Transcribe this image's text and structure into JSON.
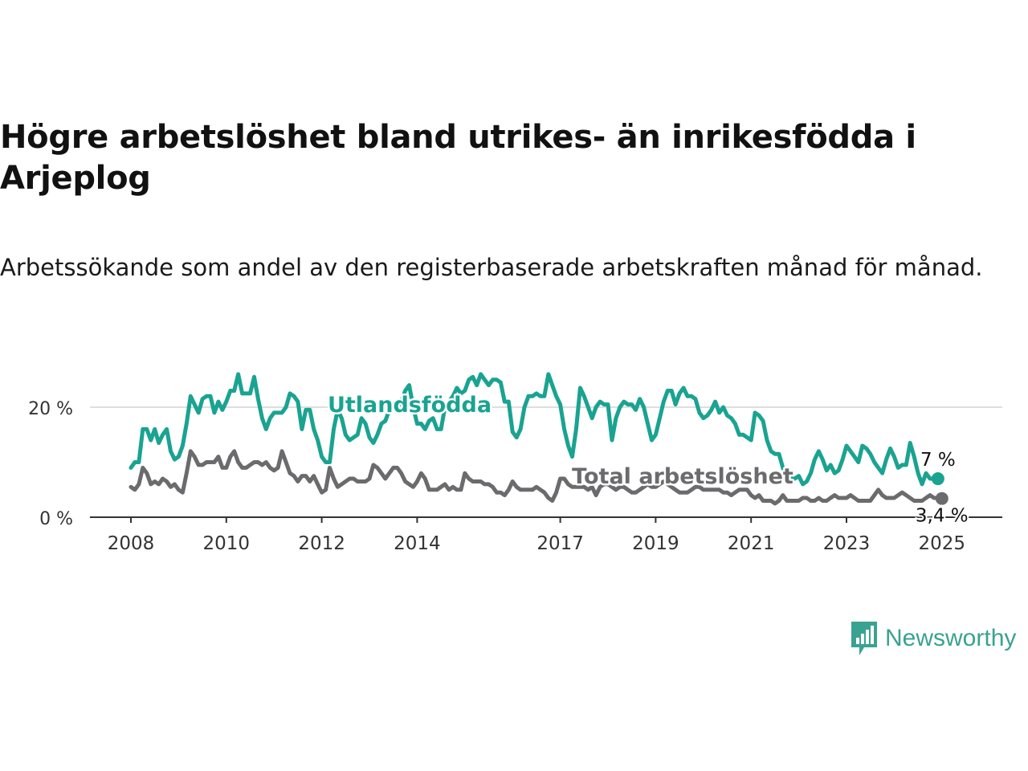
{
  "header": {
    "title": "Högre arbetslöshet bland utrikes- än inrikesfödda i Arjeplog",
    "subtitle": "Arbetssökande som andel av den registerbaserade arbetskraften månad för månad."
  },
  "branding": {
    "name": "Newsworthy",
    "icon": "bar-chart-speech-bubble-icon",
    "color": "#3aa290"
  },
  "chart_data": {
    "type": "line",
    "title": "",
    "xlabel": "",
    "ylabel": "",
    "ylim": [
      0,
      27
    ],
    "grid": "horizontal",
    "x_ticks": [
      "2008",
      "2010",
      "2012",
      "2014",
      "2017",
      "2019",
      "2021",
      "2023",
      "2025"
    ],
    "y_ticks": [
      "0 %",
      "20 %"
    ],
    "x_start": "2008-01",
    "series": [
      {
        "name": "Utlandsfödda",
        "color": "#1aa391",
        "end_label": "7 %",
        "values": [
          9,
          10,
          10,
          16,
          16,
          14,
          16,
          13.5,
          15,
          16,
          12,
          10.5,
          11,
          13,
          17,
          22,
          20.5,
          19,
          21.5,
          22,
          22,
          19,
          21,
          19.5,
          21,
          23,
          23,
          26,
          22.5,
          22.5,
          22.5,
          25.5,
          21.5,
          18,
          16,
          18,
          19,
          19,
          19,
          20,
          22.5,
          22,
          21,
          16,
          19.5,
          19.5,
          16,
          14,
          11,
          10,
          10,
          16,
          19.5,
          18,
          15,
          14,
          14.5,
          15,
          18,
          17,
          14.5,
          13.5,
          15,
          17,
          17.5,
          19.5,
          20,
          20,
          21,
          23,
          24,
          20,
          17,
          17,
          16,
          17.5,
          18,
          16,
          16,
          20,
          21,
          22,
          23.5,
          22.5,
          23,
          25,
          25.5,
          24,
          26,
          25,
          24,
          25,
          25,
          24.5,
          21,
          21,
          15.5,
          14.5,
          16,
          20,
          22,
          22,
          22.5,
          22,
          22,
          26,
          24,
          22,
          20.5,
          16,
          13,
          11,
          16,
          23.5,
          22,
          20,
          18,
          20,
          21,
          20.5,
          20.5,
          14,
          18,
          20,
          21,
          20.5,
          20.5,
          19.5,
          21.5,
          20,
          17,
          14,
          15,
          18,
          21,
          23,
          23,
          20.5,
          22.5,
          23.5,
          22,
          22,
          21.5,
          19,
          18,
          18.5,
          19.5,
          21,
          19,
          20,
          18.5,
          18,
          17,
          15,
          15,
          14.5,
          14,
          19,
          18.5,
          17.5,
          14,
          12,
          11.5,
          11.5,
          9,
          7,
          7,
          7,
          7.5,
          6,
          6.5,
          8,
          10.5,
          12,
          10.5,
          8.5,
          9.5,
          8,
          8.5,
          10.5,
          13,
          12,
          11,
          10,
          13,
          12.5,
          11.5,
          10,
          9,
          8,
          10.5,
          12.5,
          11,
          9,
          9.5,
          9.5,
          13.5,
          11,
          8,
          6,
          8,
          7,
          7,
          7
        ]
      },
      {
        "name": "Total arbetslöshet",
        "color": "#6b6b6e",
        "end_label": "3,4 %",
        "values": [
          5.5,
          5,
          6,
          9,
          8,
          6,
          6.5,
          6,
          7,
          6.5,
          5.5,
          6,
          5,
          4.5,
          8,
          12,
          11,
          9.5,
          9.5,
          10,
          10,
          10,
          11,
          9,
          9,
          11,
          12,
          10,
          9,
          9,
          9.5,
          10,
          10,
          9.5,
          10,
          9,
          8.5,
          9,
          12,
          10,
          8,
          7.5,
          6.5,
          7.5,
          7.5,
          6.5,
          7.5,
          6,
          4.5,
          5,
          9,
          7,
          5.5,
          6,
          6.5,
          7,
          7,
          6.5,
          6.5,
          6.5,
          7,
          9.5,
          9,
          8,
          7,
          8,
          9,
          9,
          8,
          6.5,
          6,
          5.5,
          6.5,
          8,
          7,
          5,
          5,
          5,
          5.5,
          6,
          5,
          5.5,
          5,
          5,
          8,
          7,
          6.5,
          6.5,
          6.5,
          6,
          6,
          5.5,
          4.5,
          4.5,
          4,
          5,
          6.5,
          5.5,
          5,
          5,
          5,
          5,
          5.5,
          5,
          4.5,
          3.5,
          3,
          4.5,
          7,
          7,
          6,
          5.5,
          5.5,
          5.5,
          5.5,
          5,
          5.5,
          4,
          5.5,
          6,
          6,
          5.5,
          5,
          5.5,
          5.5,
          5,
          4.5,
          4.5,
          5,
          5.5,
          6,
          5.5,
          5.5,
          6,
          6.5,
          6,
          5.5,
          5,
          4.5,
          4.5,
          4.5,
          5,
          5.5,
          5.5,
          5,
          5,
          5,
          5,
          5,
          4.5,
          4.5,
          4,
          4.5,
          5,
          5,
          5,
          4,
          3.5,
          4,
          3,
          3,
          3,
          2.5,
          3,
          4,
          3,
          3,
          3,
          3,
          3.5,
          3.5,
          3,
          3,
          3.5,
          3,
          3,
          3.5,
          4,
          3.5,
          3.5,
          3.5,
          4,
          3.5,
          3,
          3,
          3,
          3,
          4,
          5,
          4,
          3.5,
          3.5,
          3.5,
          4,
          4.5,
          4,
          3.5,
          3,
          3,
          3,
          3.5,
          4,
          3.5,
          3.5,
          3.4
        ]
      }
    ]
  }
}
